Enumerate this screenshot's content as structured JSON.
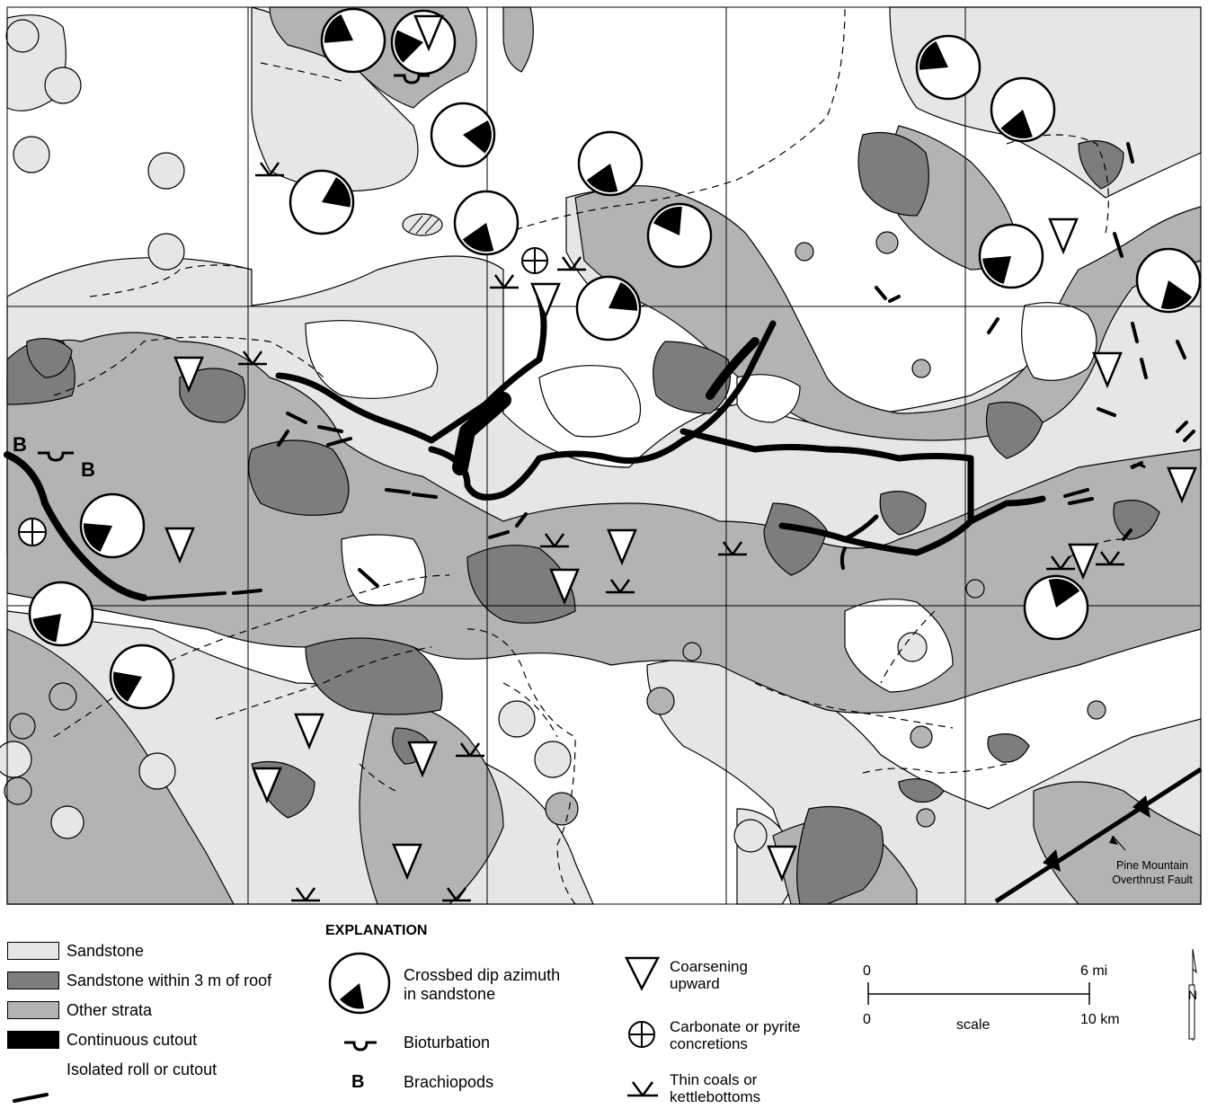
{
  "map": {
    "grid_labels_letters": [
      "B",
      "B"
    ],
    "annotation": "Pine Mountain Overthrust Fault",
    "annotation_lines": [
      "Pine Mountain",
      "Overthrust Fault"
    ]
  },
  "colors": {
    "sandstone": "#e6e6e6",
    "sandstone_roof": "#7d7d7d",
    "other_strata": "#b3b3b3",
    "cutout": "#000000",
    "background": "#ffffff"
  },
  "legend": {
    "title": "EXPLANATION",
    "units": [
      {
        "label": "Sandstone",
        "color": "#e6e6e6"
      },
      {
        "label": "Sandstone within 3 m of roof",
        "color": "#7d7d7d"
      },
      {
        "label": "Other strata",
        "color": "#b3b3b3"
      },
      {
        "label": "Continuous cutout",
        "color": "#000000"
      },
      {
        "label": "Isolated roll or cutout",
        "icon": "dash-line-icon"
      }
    ],
    "symbols_col2": [
      {
        "label_lines": [
          "Crossbed dip azimuth",
          "in sandstone"
        ],
        "icon": "rose-circle-icon"
      },
      {
        "label": "Bioturbation",
        "icon": "bioturbation-icon"
      },
      {
        "symbol": "B",
        "label": "Brachiopods"
      }
    ],
    "symbols_col3": [
      {
        "label_lines": [
          "Coarsening",
          "upward"
        ],
        "icon": "triangle-down-icon"
      },
      {
        "label_lines": [
          "Carbonate or pyrite",
          "concretions"
        ],
        "icon": "circle-cross-icon"
      },
      {
        "label_lines": [
          "Thin coals or",
          "kettlebottoms"
        ],
        "icon": "kettle-icon"
      }
    ]
  },
  "scale_bar": {
    "top_left": "0",
    "top_right": "6 mi",
    "bottom_left": "0",
    "bottom_mid": "scale",
    "bottom_right": "10 km"
  },
  "north_arrow": {
    "label": "N",
    "icon": "north-arrow-icon"
  }
}
